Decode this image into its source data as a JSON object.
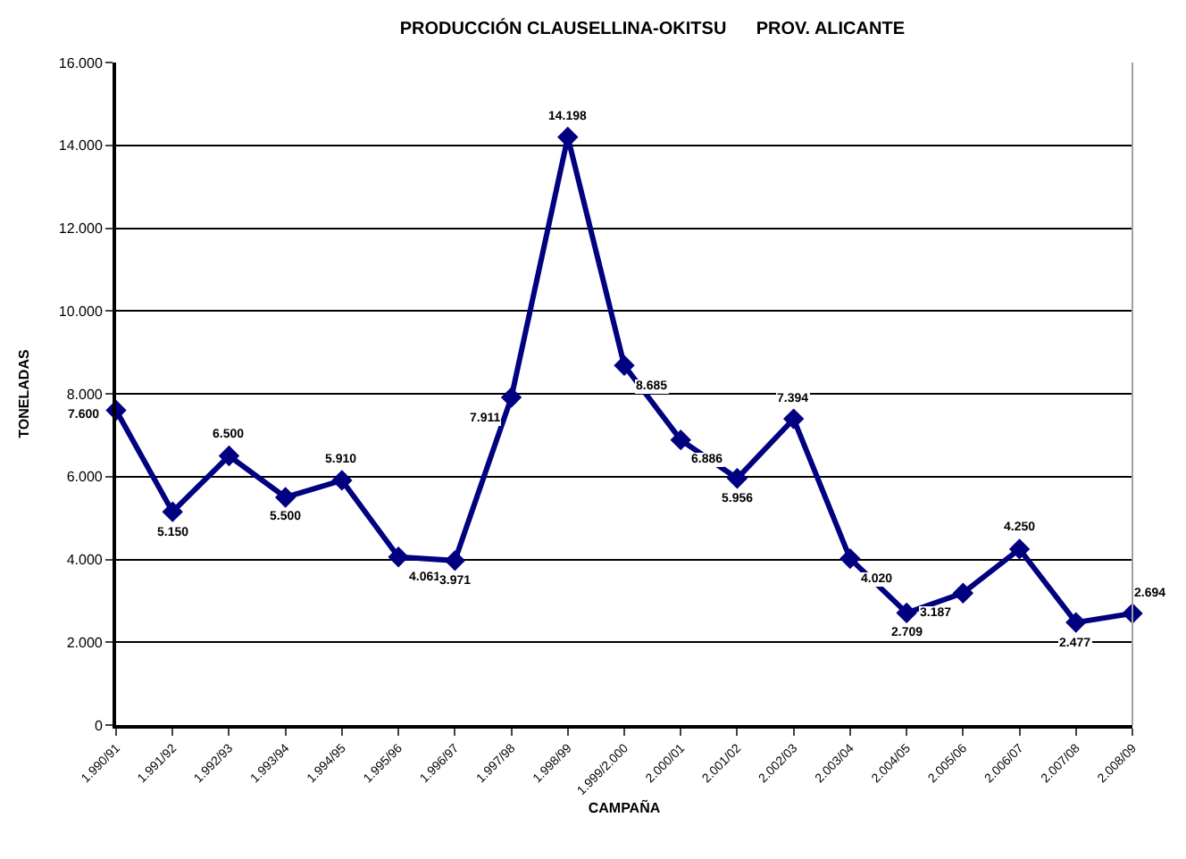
{
  "chart_data": {
    "type": "line",
    "title": "PRODUCCIÓN CLAUSELLINA-OKITSU      PROV. ALICANTE",
    "xlabel": "CAMPAÑA",
    "ylabel": "TONELADAS",
    "categories": [
      "1.990/91",
      "1.991/92",
      "1.992/93",
      "1.993/94",
      "1.994/95",
      "1.995/96",
      "1.996/97",
      "1.997/98",
      "1.998/99",
      "1.999/2.000",
      "2.000/01",
      "2.001/02",
      "2.002/03",
      "2.003/04",
      "2.004/05",
      "2.005/06",
      "2.006/07",
      "2.007/08",
      "2.008/09"
    ],
    "series": [
      {
        "color": "#000080",
        "values": [
          7600,
          5150,
          6500,
          5500,
          5910,
          4061,
          3971,
          7911,
          14198,
          8685,
          6886,
          5956,
          7394,
          4020,
          2709,
          3187,
          4250,
          2477,
          2694
        ],
        "value_labels": [
          "7.600",
          "5.150",
          "6.500",
          "5.500",
          "5.910",
          "4.061",
          "3.971",
          "7.911",
          "14.198",
          "8.685",
          "6.886",
          "5.956",
          "7.394",
          "4.020",
          "2.709",
          "3.187",
          "4.250",
          "2.477",
          "2.694"
        ]
      }
    ],
    "ylim": [
      0,
      16000
    ],
    "yticks": [
      {
        "value": 0,
        "label": "0"
      },
      {
        "value": 2000,
        "label": "2.000"
      },
      {
        "value": 4000,
        "label": "4.000"
      },
      {
        "value": 6000,
        "label": "6.000"
      },
      {
        "value": 8000,
        "label": "8.000"
      },
      {
        "value": 10000,
        "label": "10.000"
      },
      {
        "value": 12000,
        "label": "12.000"
      },
      {
        "value": 14000,
        "label": "14.000"
      },
      {
        "value": 16000,
        "label": "16.000"
      }
    ],
    "grid": "y",
    "marker": "diamond",
    "line_style": "solid"
  }
}
